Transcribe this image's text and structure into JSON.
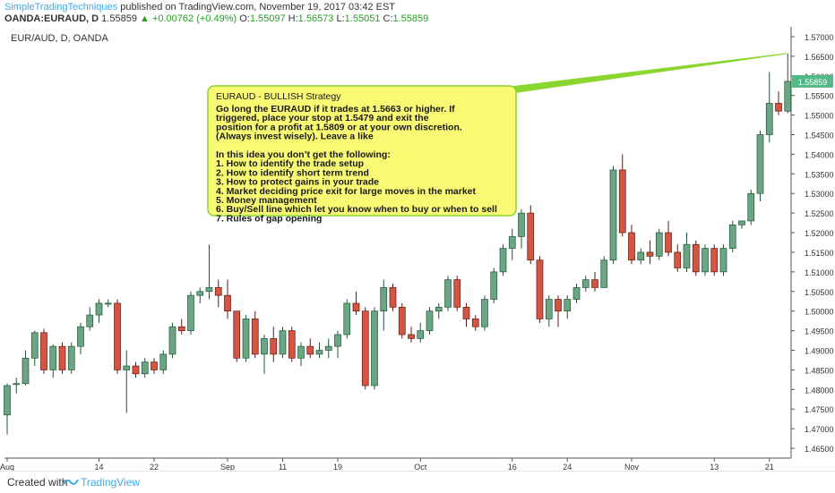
{
  "header": {
    "author": "SimpleTradingTechniques",
    "published": "published on TradingView.com, November 19, 2017 03:42 EST",
    "symbol": "OANDA:EURAUD, D",
    "last": "1.55859",
    "change": "+0.00762 (+0.49%)",
    "open_label": "O:",
    "open": "1.55097",
    "high_label": "H:",
    "high": "1.56573",
    "low_label": "L:",
    "low": "1.55051",
    "close_label": "C:",
    "close": "1.55859"
  },
  "footer": {
    "created_label": "Created with",
    "brand": "TradingView"
  },
  "colors": {
    "up": "#6ba583",
    "down": "#d75442",
    "up_border": "#225437",
    "down_border": "#5b1a13",
    "note_bg": "#f9f974",
    "note_border": "#8bd531",
    "price_tag": "#53b987"
  },
  "chart_data": {
    "type": "candlestick",
    "title": "EUR/AUD, D, OANDA",
    "ylim": [
      1.4625,
      1.5725
    ],
    "yticks": [
      "1.57000",
      "1.56500",
      "1.56000",
      "1.55500",
      "1.55000",
      "1.54500",
      "1.54000",
      "1.53500",
      "1.53000",
      "1.52500",
      "1.52000",
      "1.51500",
      "1.51000",
      "1.50500",
      "1.50000",
      "1.49500",
      "1.49000",
      "1.48500",
      "1.48000",
      "1.47500",
      "1.47000",
      "1.46500"
    ],
    "xticks": [
      {
        "label": "Aug",
        "index": 0
      },
      {
        "label": "14",
        "index": 10
      },
      {
        "label": "22",
        "index": 16
      },
      {
        "label": "Sep",
        "index": 24
      },
      {
        "label": "11",
        "index": 30
      },
      {
        "label": "19",
        "index": 36
      },
      {
        "label": "Oct",
        "index": 45
      },
      {
        "label": "16",
        "index": 55
      },
      {
        "label": "24",
        "index": 61
      },
      {
        "label": "Nov",
        "index": 68
      },
      {
        "label": "13",
        "index": 77
      },
      {
        "label": "21",
        "index": 83
      }
    ],
    "last_price": "1.55859",
    "candles": [
      [
        1.4735,
        1.4815,
        1.4685,
        1.481
      ],
      [
        1.4815,
        1.483,
        1.479,
        1.4815
      ],
      [
        1.4815,
        1.49,
        1.481,
        1.488
      ],
      [
        1.488,
        1.495,
        1.486,
        1.4945
      ],
      [
        1.4945,
        1.4955,
        1.484,
        1.485
      ],
      [
        1.485,
        1.4915,
        1.483,
        1.491
      ],
      [
        1.491,
        1.492,
        1.484,
        1.485
      ],
      [
        1.485,
        1.492,
        1.484,
        1.491
      ],
      [
        1.491,
        1.497,
        1.489,
        1.496
      ],
      [
        1.496,
        1.501,
        1.495,
        1.499
      ],
      [
        1.499,
        1.503,
        1.497,
        1.502
      ],
      [
        1.502,
        1.503,
        1.501,
        1.502
      ],
      [
        1.502,
        1.503,
        1.484,
        1.485
      ],
      [
        1.485,
        1.49,
        1.474,
        1.486
      ],
      [
        1.486,
        1.487,
        1.483,
        1.484
      ],
      [
        1.484,
        1.488,
        1.483,
        1.487
      ],
      [
        1.487,
        1.488,
        1.484,
        1.485
      ],
      [
        1.485,
        1.49,
        1.484,
        1.489
      ],
      [
        1.489,
        1.497,
        1.488,
        1.496
      ],
      [
        1.496,
        1.498,
        1.494,
        1.495
      ],
      [
        1.495,
        1.505,
        1.494,
        1.504
      ],
      [
        1.504,
        1.506,
        1.502,
        1.505
      ],
      [
        1.505,
        1.517,
        1.503,
        1.506
      ],
      [
        1.506,
        1.508,
        1.501,
        1.504
      ],
      [
        1.504,
        1.508,
        1.498,
        1.5
      ],
      [
        1.5,
        1.5,
        1.487,
        1.488
      ],
      [
        1.488,
        1.499,
        1.487,
        1.498
      ],
      [
        1.498,
        1.5,
        1.488,
        1.489
      ],
      [
        1.489,
        1.494,
        1.484,
        1.493
      ],
      [
        1.493,
        1.496,
        1.487,
        1.489
      ],
      [
        1.489,
        1.496,
        1.488,
        1.495
      ],
      [
        1.495,
        1.496,
        1.487,
        1.488
      ],
      [
        1.488,
        1.492,
        1.486,
        1.491
      ],
      [
        1.491,
        1.493,
        1.488,
        1.489
      ],
      [
        1.489,
        1.492,
        1.488,
        1.49
      ],
      [
        1.49,
        1.493,
        1.488,
        1.491
      ],
      [
        1.491,
        1.495,
        1.488,
        1.494
      ],
      [
        1.494,
        1.503,
        1.493,
        1.502
      ],
      [
        1.502,
        1.505,
        1.499,
        1.5
      ],
      [
        1.5,
        1.501,
        1.48,
        1.481
      ],
      [
        1.481,
        1.501,
        1.48,
        1.5
      ],
      [
        1.5,
        1.508,
        1.495,
        1.506
      ],
      [
        1.506,
        1.507,
        1.5,
        1.501
      ],
      [
        1.501,
        1.502,
        1.493,
        1.494
      ],
      [
        1.494,
        1.496,
        1.492,
        1.493
      ],
      [
        1.493,
        1.497,
        1.492,
        1.495
      ],
      [
        1.495,
        1.501,
        1.494,
        1.5
      ],
      [
        1.5,
        1.502,
        1.498,
        1.501
      ],
      [
        1.501,
        1.509,
        1.5,
        1.508
      ],
      [
        1.508,
        1.509,
        1.5,
        1.501
      ],
      [
        1.501,
        1.502,
        1.496,
        1.498
      ],
      [
        1.498,
        1.499,
        1.495,
        1.496
      ],
      [
        1.496,
        1.504,
        1.495,
        1.503
      ],
      [
        1.503,
        1.511,
        1.502,
        1.51
      ],
      [
        1.51,
        1.517,
        1.509,
        1.516
      ],
      [
        1.516,
        1.521,
        1.513,
        1.519
      ],
      [
        1.519,
        1.526,
        1.516,
        1.525
      ],
      [
        1.525,
        1.527,
        1.512,
        1.513
      ],
      [
        1.513,
        1.514,
        1.497,
        1.498
      ],
      [
        1.498,
        1.504,
        1.496,
        1.503
      ],
      [
        1.503,
        1.504,
        1.496,
        1.5
      ],
      [
        1.5,
        1.504,
        1.498,
        1.503
      ],
      [
        1.503,
        1.507,
        1.502,
        1.506
      ],
      [
        1.506,
        1.509,
        1.505,
        1.508
      ],
      [
        1.508,
        1.51,
        1.505,
        1.506
      ],
      [
        1.506,
        1.514,
        1.506,
        1.513
      ],
      [
        1.513,
        1.537,
        1.512,
        1.536
      ],
      [
        1.536,
        1.54,
        1.519,
        1.52
      ],
      [
        1.52,
        1.522,
        1.512,
        1.513
      ],
      [
        1.513,
        1.516,
        1.512,
        1.515
      ],
      [
        1.515,
        1.518,
        1.512,
        1.514
      ],
      [
        1.514,
        1.521,
        1.513,
        1.52
      ],
      [
        1.52,
        1.523,
        1.514,
        1.515
      ],
      [
        1.515,
        1.517,
        1.51,
        1.511
      ],
      [
        1.511,
        1.52,
        1.51,
        1.517
      ],
      [
        1.517,
        1.518,
        1.509,
        1.51
      ],
      [
        1.51,
        1.517,
        1.509,
        1.516
      ],
      [
        1.516,
        1.517,
        1.509,
        1.51
      ],
      [
        1.51,
        1.517,
        1.509,
        1.516
      ],
      [
        1.516,
        1.523,
        1.515,
        1.522
      ],
      [
        1.522,
        1.523,
        1.521,
        1.523
      ],
      [
        1.523,
        1.531,
        1.522,
        1.53
      ],
      [
        1.53,
        1.546,
        1.528,
        1.545
      ],
      [
        1.545,
        1.561,
        1.543,
        1.553
      ],
      [
        1.553,
        1.556,
        1.55,
        1.551
      ],
      [
        1.551,
        1.5657,
        1.5505,
        1.5586
      ]
    ],
    "note": {
      "title": "EURAUD - BULLISH Strategy",
      "paragraph": "Go long the EURAUD if it trades at 1.5663 or higher. If triggered, place your stop at 1.5479 and exit the position for a profit at 1.5809 or at your own discretion. (Always invest wisely). Leave a like",
      "list_intro": "In this idea you don’t get the following:",
      "list": [
        "1. How to identify the trade setup",
        "2. How to identify short term trend",
        "3. How to protect gains in your trade",
        "4. Market deciding price exit for large moves in the market",
        "5. Money management",
        "6. Buy/Sell line which let you know when to buy or when to sell",
        "7. Rules of gap opening"
      ]
    }
  }
}
